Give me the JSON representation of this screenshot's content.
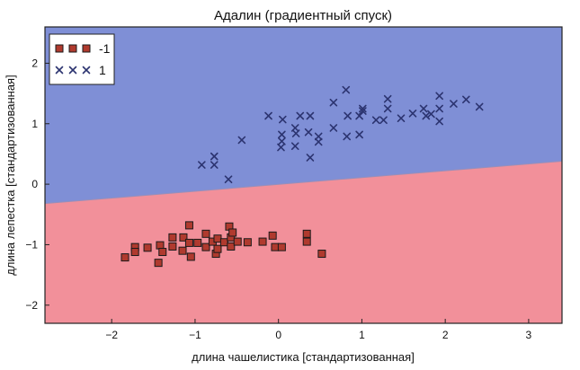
{
  "chart_data": {
    "type": "scatter",
    "title": "Адалин (градиентный спуск)",
    "xlabel": "длина чашелистика [стандартизованная]",
    "ylabel": "длина лепестка [стандартизованная]",
    "xlim": [
      -2.8,
      3.4
    ],
    "ylim": [
      -2.3,
      2.6
    ],
    "xticks": [
      -2,
      -1,
      0,
      1,
      2,
      3
    ],
    "yticks": [
      -2,
      -1,
      0,
      1,
      2
    ],
    "grid": false,
    "legend_position": "top-left",
    "decision_boundary": {
      "x": [
        -2.8,
        3.4
      ],
      "y": [
        -0.32,
        0.38
      ]
    },
    "region_colors": {
      "upper": "#7f8fd6",
      "lower": "#f2909a"
    },
    "series": [
      {
        "name": "-1",
        "marker": "square",
        "color": "#b03a2e",
        "points": [
          [
            -1.84,
            -1.21
          ],
          [
            -1.72,
            -1.04
          ],
          [
            -1.72,
            -1.12
          ],
          [
            -1.57,
            -1.05
          ],
          [
            -1.44,
            -1.3
          ],
          [
            -1.42,
            -1.01
          ],
          [
            -1.39,
            -1.12
          ],
          [
            -1.27,
            -0.88
          ],
          [
            -1.27,
            -1.03
          ],
          [
            -1.15,
            -1.1
          ],
          [
            -1.14,
            -0.88
          ],
          [
            -1.07,
            -0.68
          ],
          [
            -1.07,
            -0.97
          ],
          [
            -1.05,
            -1.2
          ],
          [
            -0.97,
            -0.97
          ],
          [
            -0.87,
            -0.82
          ],
          [
            -0.87,
            -1.04
          ],
          [
            -0.79,
            -0.95
          ],
          [
            -0.75,
            -1.15
          ],
          [
            -0.73,
            -0.9
          ],
          [
            -0.73,
            -1.07
          ],
          [
            -0.65,
            -0.96
          ],
          [
            -0.59,
            -0.7
          ],
          [
            -0.57,
            -0.88
          ],
          [
            -0.57,
            -1.03
          ],
          [
            -0.55,
            -0.8
          ],
          [
            -0.49,
            -0.95
          ],
          [
            -0.37,
            -0.96
          ],
          [
            -0.19,
            -0.95
          ],
          [
            -0.07,
            -0.85
          ],
          [
            -0.04,
            -1.04
          ],
          [
            0.04,
            -1.04
          ],
          [
            0.34,
            -0.82
          ],
          [
            0.34,
            -0.95
          ],
          [
            0.52,
            -1.15
          ]
        ]
      },
      {
        "name": "1",
        "marker": "x",
        "color": "#2c3470",
        "points": [
          [
            -0.92,
            0.32
          ],
          [
            -0.77,
            0.46
          ],
          [
            -0.77,
            0.32
          ],
          [
            -0.6,
            0.08
          ],
          [
            -0.44,
            0.73
          ],
          [
            -0.12,
            1.13
          ],
          [
            0.03,
            0.61
          ],
          [
            0.04,
            0.71
          ],
          [
            0.04,
            0.82
          ],
          [
            0.05,
            1.07
          ],
          [
            0.21,
            0.84
          ],
          [
            0.2,
            0.93
          ],
          [
            0.2,
            0.63
          ],
          [
            0.26,
            1.13
          ],
          [
            0.36,
            0.86
          ],
          [
            0.38,
            1.13
          ],
          [
            0.38,
            0.44
          ],
          [
            0.48,
            0.7
          ],
          [
            0.48,
            0.79
          ],
          [
            0.66,
            0.93
          ],
          [
            0.66,
            1.35
          ],
          [
            0.81,
            1.56
          ],
          [
            0.82,
            0.79
          ],
          [
            0.83,
            1.13
          ],
          [
            0.97,
            1.13
          ],
          [
            0.97,
            0.82
          ],
          [
            1.01,
            1.25
          ],
          [
            1.01,
            1.21
          ],
          [
            1.17,
            1.06
          ],
          [
            1.26,
            1.06
          ],
          [
            1.31,
            1.25
          ],
          [
            1.31,
            1.41
          ],
          [
            1.47,
            1.09
          ],
          [
            1.61,
            1.17
          ],
          [
            1.74,
            1.25
          ],
          [
            1.77,
            1.13
          ],
          [
            1.83,
            1.16
          ],
          [
            1.93,
            1.46
          ],
          [
            1.93,
            1.25
          ],
          [
            1.93,
            1.04
          ],
          [
            2.1,
            1.33
          ],
          [
            2.25,
            1.4
          ],
          [
            2.41,
            1.28
          ]
        ]
      }
    ]
  }
}
